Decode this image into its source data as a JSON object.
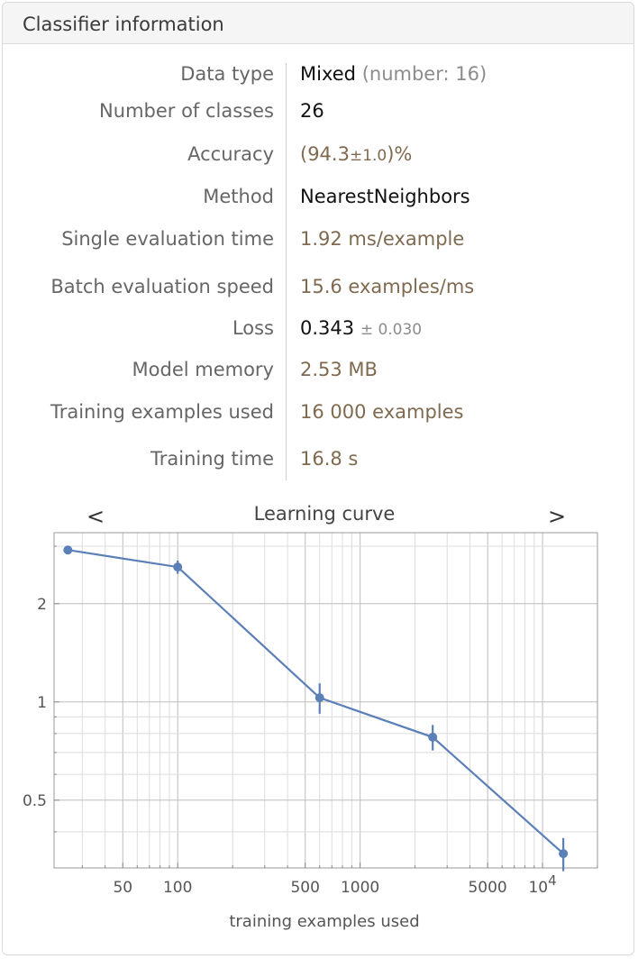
{
  "panel": {
    "title": "Classifier information"
  },
  "info": {
    "data_type": {
      "label": "Data type",
      "value": "Mixed",
      "detail": "(number: 16)"
    },
    "num_classes": {
      "label": "Number of classes",
      "value": "26"
    },
    "accuracy": {
      "label": "Accuracy",
      "open": "(94.3",
      "pm": "±1.0",
      "close": ")%"
    },
    "method": {
      "label": "Method",
      "value": "NearestNeighbors"
    },
    "single_eval": {
      "label": "Single evaluation time",
      "value": "1.92 ms/example"
    },
    "batch_eval": {
      "label": "Batch evaluation speed",
      "value": "15.6 examples/ms"
    },
    "loss": {
      "label": "Loss",
      "value": "0.343",
      "pm": "± 0.030"
    },
    "model_memory": {
      "label": "Model memory",
      "value": "2.53 MB"
    },
    "training_examples": {
      "label": "Training examples used",
      "value": "16 000 examples"
    },
    "training_time": {
      "label": "Training time",
      "value": "16.8 s"
    }
  },
  "chart_nav": {
    "prev": "<",
    "next": ">"
  },
  "colors": {
    "series": "#5b7fb7",
    "value_brown": "#7f6a4f"
  },
  "chart_data": {
    "type": "line",
    "title": "Learning curve",
    "xlabel": "training examples used",
    "ylabel": "",
    "xscale": "log",
    "yscale": "log",
    "xlim": [
      21,
      20000
    ],
    "ylim": [
      0.31,
      3.3
    ],
    "xticks": [
      {
        "value": 50,
        "label": "50"
      },
      {
        "value": 100,
        "label": "100"
      },
      {
        "value": 500,
        "label": "500"
      },
      {
        "value": 1000,
        "label": "1000"
      },
      {
        "value": 5000,
        "label": "5000"
      },
      {
        "value": 10000,
        "label": "10",
        "sup": "4"
      }
    ],
    "yticks": [
      {
        "value": 0.5,
        "label": "0.5"
      },
      {
        "value": 1,
        "label": "1"
      },
      {
        "value": 2,
        "label": "2"
      }
    ],
    "grid": true,
    "series": [
      {
        "x": [
          25,
          100,
          600,
          2500,
          13000
        ],
        "y": [
          2.92,
          2.59,
          1.03,
          0.78,
          0.343
        ],
        "err": [
          0.0,
          0.12,
          0.11,
          0.07,
          0.04
        ]
      }
    ]
  }
}
